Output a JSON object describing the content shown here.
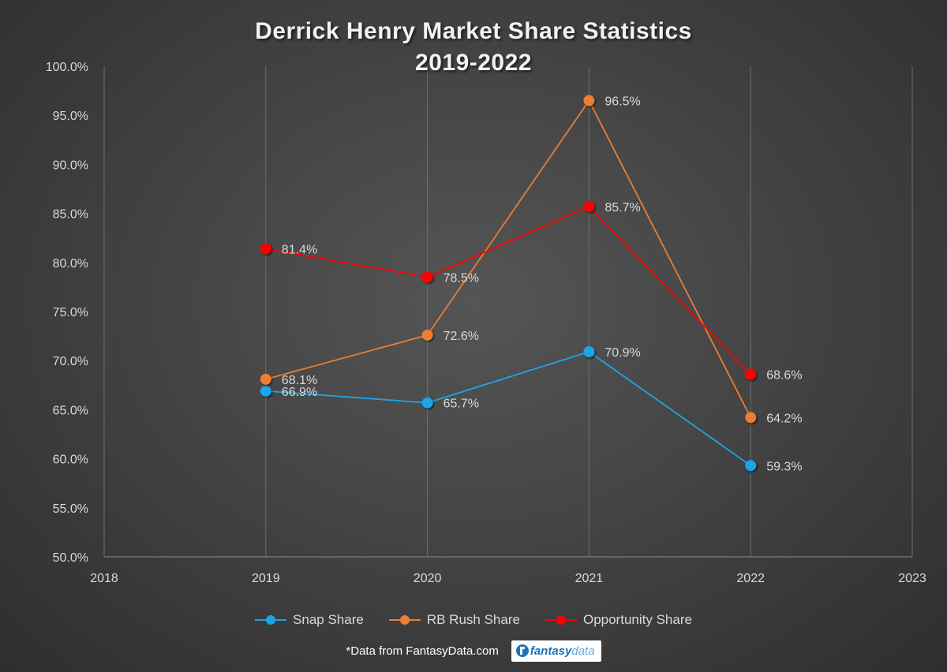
{
  "chart_data": {
    "type": "line",
    "title_line1": "Derrick Henry Market Share Statistics",
    "title_line2": "2019-2022",
    "xlabel": "",
    "ylabel": "",
    "x_ticks": [
      "2018",
      "2019",
      "2020",
      "2021",
      "2022",
      "2023"
    ],
    "xlim": [
      2018,
      2023
    ],
    "y_ticks": [
      "50.0%",
      "55.0%",
      "60.0%",
      "65.0%",
      "70.0%",
      "75.0%",
      "80.0%",
      "85.0%",
      "90.0%",
      "95.0%",
      "100.0%"
    ],
    "ylim": [
      50,
      100
    ],
    "grid": "vertical",
    "legend_position": "bottom",
    "x": [
      2019,
      2020,
      2021,
      2022
    ],
    "series": [
      {
        "name": "Snap Share",
        "color": "#1ea4e6",
        "values": [
          66.9,
          65.7,
          70.9,
          59.3
        ],
        "labels": [
          "66.9%",
          "65.7%",
          "70.9%",
          "59.3%"
        ]
      },
      {
        "name": "RB Rush Share",
        "color": "#ed7d31",
        "values": [
          68.1,
          72.6,
          96.5,
          64.2
        ],
        "labels": [
          "68.1%",
          "72.6%",
          "96.5%",
          "64.2%"
        ]
      },
      {
        "name": "Opportunity Share",
        "color": "#ff0000",
        "values": [
          81.4,
          78.5,
          85.7,
          68.6
        ],
        "labels": [
          "81.4%",
          "78.5%",
          "85.7%",
          "68.6%"
        ]
      }
    ]
  },
  "footer": {
    "source_note": "*Data from FantasyData.com",
    "logo_bold": "fantasy",
    "logo_light": "data"
  }
}
